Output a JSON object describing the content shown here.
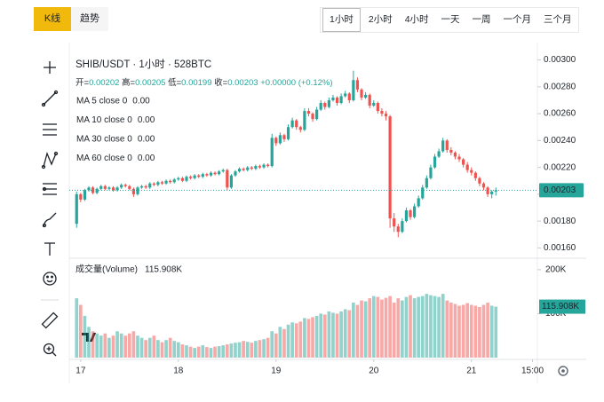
{
  "tabs": [
    "K线",
    "趋势"
  ],
  "intervals": [
    "1小时",
    "2小时",
    "4小时",
    "一天",
    "一周",
    "一个月",
    "三个月"
  ],
  "chart_data": [
    {
      "type": "candlestick",
      "title": "SHIB/USDT · 1小时 · 528BTC",
      "ohlc_legend": [
        {
          "label": "开=",
          "value": "0.00202"
        },
        {
          "label": "高=",
          "value": "0.00205"
        },
        {
          "label": "低=",
          "value": "0.00199"
        },
        {
          "label": "收=",
          "value": "0.00203"
        },
        {
          "value": "+0.00000 (+0.12%)"
        }
      ],
      "indicators": [
        {
          "name": "MA 5 close 0",
          "value": "0.00",
          "color": "#f0b90b"
        },
        {
          "name": "MA 10 close 0",
          "value": "0.00",
          "color": "#b39ddb"
        },
        {
          "name": "MA 30 close 0",
          "value": "0.00",
          "color": "#7e9bdb"
        },
        {
          "name": "MA 60 close 0",
          "value": "0.00",
          "color": "#e57373"
        }
      ],
      "up_color": "#26a69a",
      "down_color": "#ef5350",
      "x": [
        -1,
        0,
        1,
        2,
        3,
        4,
        5,
        6,
        7,
        8,
        9,
        10,
        11,
        12,
        13,
        14,
        15,
        16,
        17,
        18,
        19,
        20,
        21,
        22,
        23,
        24,
        25,
        26,
        27,
        28,
        29,
        30,
        31,
        32,
        33,
        34,
        35,
        36,
        37,
        38,
        39,
        40,
        41,
        42,
        43,
        44,
        45,
        46,
        47,
        48,
        49,
        50,
        51,
        52,
        53,
        54,
        55,
        56,
        57,
        58,
        59,
        60,
        61,
        62,
        63,
        64,
        65,
        66,
        67,
        68,
        69,
        70,
        71,
        72,
        73,
        74,
        75,
        76,
        77,
        78,
        79,
        80,
        81,
        82,
        83,
        84,
        85,
        86,
        87,
        88,
        89,
        90,
        91,
        92,
        93,
        94,
        95,
        96,
        97,
        98,
        99,
        100,
        101,
        102
      ],
      "ohlc": [
        [
          0.00178,
          0.00202,
          0.00175,
          0.002
        ],
        [
          0.002,
          0.00201,
          0.00194,
          0.00196
        ],
        [
          0.00196,
          0.00204,
          0.00195,
          0.00203
        ],
        [
          0.00203,
          0.00206,
          0.00202,
          0.00205
        ],
        [
          0.00205,
          0.00206,
          0.002,
          0.00201
        ],
        [
          0.00201,
          0.00205,
          0.002,
          0.00204
        ],
        [
          0.00204,
          0.00207,
          0.00203,
          0.00206
        ],
        [
          0.00206,
          0.00207,
          0.00203,
          0.00204
        ],
        [
          0.00204,
          0.00206,
          0.00203,
          0.00205
        ],
        [
          0.00205,
          0.00206,
          0.00202,
          0.00203
        ],
        [
          0.00203,
          0.00206,
          0.00202,
          0.00205
        ],
        [
          0.00205,
          0.00208,
          0.00204,
          0.00207
        ],
        [
          0.00207,
          0.00208,
          0.00205,
          0.00206
        ],
        [
          0.00206,
          0.00207,
          0.00203,
          0.00204
        ],
        [
          0.00204,
          0.00205,
          0.00198,
          0.002
        ],
        [
          0.002,
          0.00206,
          0.00199,
          0.00205
        ],
        [
          0.00205,
          0.00207,
          0.00204,
          0.00206
        ],
        [
          0.00206,
          0.00207,
          0.00204,
          0.00205
        ],
        [
          0.00205,
          0.00209,
          0.00204,
          0.00208
        ],
        [
          0.00208,
          0.00209,
          0.00206,
          0.00207
        ],
        [
          0.00207,
          0.0021,
          0.00206,
          0.00209
        ],
        [
          0.00209,
          0.0021,
          0.00207,
          0.00208
        ],
        [
          0.00208,
          0.00211,
          0.00207,
          0.0021
        ],
        [
          0.0021,
          0.00211,
          0.00208,
          0.00209
        ],
        [
          0.00209,
          0.00212,
          0.00208,
          0.00211
        ],
        [
          0.00211,
          0.00213,
          0.0021,
          0.00212
        ],
        [
          0.00212,
          0.00213,
          0.00209,
          0.0021
        ],
        [
          0.0021,
          0.00214,
          0.00209,
          0.00213
        ],
        [
          0.00213,
          0.00214,
          0.00211,
          0.00212
        ],
        [
          0.00212,
          0.00215,
          0.00211,
          0.00214
        ],
        [
          0.00214,
          0.00215,
          0.00212,
          0.00213
        ],
        [
          0.00213,
          0.00216,
          0.00212,
          0.00215
        ],
        [
          0.00215,
          0.00216,
          0.00213,
          0.00214
        ],
        [
          0.00214,
          0.00217,
          0.00213,
          0.00216
        ],
        [
          0.00216,
          0.00217,
          0.00214,
          0.00215
        ],
        [
          0.00215,
          0.00218,
          0.00214,
          0.00217
        ],
        [
          0.00217,
          0.00219,
          0.00216,
          0.00218
        ],
        [
          0.00218,
          0.00219,
          0.00203,
          0.00205
        ],
        [
          0.00205,
          0.00215,
          0.00204,
          0.00214
        ],
        [
          0.00214,
          0.00218,
          0.00213,
          0.00217
        ],
        [
          0.00217,
          0.0022,
          0.00216,
          0.00219
        ],
        [
          0.00219,
          0.0022,
          0.00217,
          0.00218
        ],
        [
          0.00218,
          0.00221,
          0.00217,
          0.0022
        ],
        [
          0.0022,
          0.00221,
          0.00218,
          0.00219
        ],
        [
          0.00219,
          0.00222,
          0.00218,
          0.00221
        ],
        [
          0.00221,
          0.00222,
          0.00219,
          0.0022
        ],
        [
          0.0022,
          0.00223,
          0.00219,
          0.00222
        ],
        [
          0.00222,
          0.00223,
          0.0022,
          0.00221
        ],
        [
          0.00221,
          0.00245,
          0.0022,
          0.00242
        ],
        [
          0.00242,
          0.00243,
          0.00236,
          0.00238
        ],
        [
          0.00238,
          0.00246,
          0.00237,
          0.00244
        ],
        [
          0.00244,
          0.00245,
          0.00239,
          0.00241
        ],
        [
          0.00241,
          0.00252,
          0.0024,
          0.0025
        ],
        [
          0.0025,
          0.00257,
          0.00249,
          0.00255
        ],
        [
          0.00255,
          0.00256,
          0.00248,
          0.0025
        ],
        [
          0.0025,
          0.00251,
          0.00246,
          0.00248
        ],
        [
          0.00248,
          0.00264,
          0.00247,
          0.00262
        ],
        [
          0.00262,
          0.00264,
          0.00258,
          0.0026
        ],
        [
          0.0026,
          0.00261,
          0.00254,
          0.00256
        ],
        [
          0.00256,
          0.00265,
          0.00255,
          0.00263
        ],
        [
          0.00263,
          0.0027,
          0.00262,
          0.00268
        ],
        [
          0.00268,
          0.00269,
          0.00263,
          0.00265
        ],
        [
          0.00265,
          0.00272,
          0.00264,
          0.0027
        ],
        [
          0.0027,
          0.00274,
          0.00269,
          0.00272
        ],
        [
          0.00272,
          0.00273,
          0.00266,
          0.00268
        ],
        [
          0.00268,
          0.00275,
          0.00267,
          0.00273
        ],
        [
          0.00273,
          0.00277,
          0.00272,
          0.00275
        ],
        [
          0.00275,
          0.00276,
          0.00268,
          0.0027
        ],
        [
          0.0027,
          0.00292,
          0.00269,
          0.00285
        ],
        [
          0.00285,
          0.00287,
          0.00276,
          0.00278
        ],
        [
          0.00278,
          0.00279,
          0.0027,
          0.00272
        ],
        [
          0.00272,
          0.00276,
          0.00271,
          0.00274
        ],
        [
          0.00274,
          0.00275,
          0.00264,
          0.00266
        ],
        [
          0.00266,
          0.0027,
          0.00265,
          0.00268
        ],
        [
          0.00268,
          0.00269,
          0.0026,
          0.00262
        ],
        [
          0.00262,
          0.00264,
          0.00258,
          0.0026
        ],
        [
          0.0026,
          0.00262,
          0.00255,
          0.00258
        ],
        [
          0.00258,
          0.00259,
          0.00175,
          0.00182
        ],
        [
          0.00182,
          0.00186,
          0.00172,
          0.00176
        ],
        [
          0.00176,
          0.00178,
          0.00168,
          0.00172
        ],
        [
          0.00172,
          0.00182,
          0.00171,
          0.0018
        ],
        [
          0.0018,
          0.0019,
          0.00179,
          0.00188
        ],
        [
          0.00188,
          0.00189,
          0.00181,
          0.00183
        ],
        [
          0.00183,
          0.00193,
          0.00182,
          0.00191
        ],
        [
          0.00191,
          0.00199,
          0.0019,
          0.00197
        ],
        [
          0.00197,
          0.00207,
          0.00196,
          0.00205
        ],
        [
          0.00205,
          0.00214,
          0.00204,
          0.00212
        ],
        [
          0.00212,
          0.00222,
          0.00211,
          0.0022
        ],
        [
          0.0022,
          0.0023,
          0.00219,
          0.00228
        ],
        [
          0.00228,
          0.00234,
          0.00227,
          0.00232
        ],
        [
          0.00232,
          0.00242,
          0.00231,
          0.0024
        ],
        [
          0.0024,
          0.00241,
          0.00231,
          0.00233
        ],
        [
          0.00233,
          0.00235,
          0.00229,
          0.00231
        ],
        [
          0.00231,
          0.00232,
          0.00226,
          0.00228
        ],
        [
          0.00228,
          0.0023,
          0.00224,
          0.00226
        ],
        [
          0.00226,
          0.00227,
          0.0022,
          0.00222
        ],
        [
          0.00222,
          0.00224,
          0.00216,
          0.00218
        ],
        [
          0.00218,
          0.0022,
          0.00214,
          0.00216
        ],
        [
          0.00216,
          0.00217,
          0.0021,
          0.00212
        ],
        [
          0.00212,
          0.00213,
          0.00206,
          0.00208
        ],
        [
          0.00208,
          0.00209,
          0.00203,
          0.00205
        ],
        [
          0.00205,
          0.00206,
          0.00198,
          0.002
        ],
        [
          0.002,
          0.00203,
          0.00197,
          0.00202
        ],
        [
          0.00202,
          0.00205,
          0.00199,
          0.00203
        ]
      ],
      "xlim": [
        -2.8,
        112.2
      ],
      "ylim": [
        0.00153,
        0.00305
      ],
      "yticks": [
        {
          "value": 0.003,
          "label": "0.00300"
        },
        {
          "value": 0.0028,
          "label": "0.00280"
        },
        {
          "value": 0.0026,
          "label": "0.00260"
        },
        {
          "value": 0.0024,
          "label": "0.00240"
        },
        {
          "value": 0.0022,
          "label": "0.00220"
        },
        {
          "value": 0.002,
          "label": "0.00200"
        },
        {
          "value": 0.0018,
          "label": "0.00180"
        },
        {
          "value": 0.0016,
          "label": "0.00160"
        }
      ],
      "last_price": 0.00203
    },
    {
      "type": "bar",
      "title": "成交量(Volume)",
      "legend_value": "115.908K",
      "values": [
        135000,
        120000,
        95000,
        70000,
        60000,
        55000,
        50000,
        55000,
        45000,
        50000,
        60000,
        55000,
        50000,
        55000,
        60000,
        50000,
        45000,
        40000,
        45000,
        50000,
        40000,
        35000,
        40000,
        45000,
        38000,
        35000,
        30000,
        28000,
        25000,
        22000,
        25000,
        28000,
        24000,
        22000,
        25000,
        26000,
        28000,
        30000,
        32000,
        34000,
        35000,
        38000,
        36000,
        34000,
        38000,
        40000,
        42000,
        45000,
        60000,
        55000,
        70000,
        65000,
        75000,
        80000,
        78000,
        82000,
        90000,
        88000,
        92000,
        95000,
        100000,
        98000,
        105000,
        102000,
        100000,
        105000,
        110000,
        108000,
        125000,
        120000,
        130000,
        128000,
        135000,
        140000,
        138000,
        132000,
        136000,
        140000,
        125000,
        135000,
        130000,
        138000,
        142000,
        135000,
        138000,
        140000,
        145000,
        142000,
        140000,
        138000,
        145000,
        130000,
        125000,
        122000,
        118000,
        120000,
        124000,
        120000,
        118000,
        115000,
        120000,
        125000,
        118000,
        115908
      ],
      "ylim": [
        0,
        226000
      ],
      "yticks": [
        {
          "value": 200000,
          "label": "200K"
        },
        {
          "value": 100000,
          "label": "100K"
        }
      ],
      "xticks": [
        {
          "value": 0,
          "label": "17"
        },
        {
          "value": 24,
          "label": "18"
        },
        {
          "value": 48,
          "label": "19"
        },
        {
          "value": 72,
          "label": "20"
        },
        {
          "value": 96,
          "label": "21"
        },
        {
          "value": 111,
          "label": "15:00"
        }
      ]
    }
  ]
}
